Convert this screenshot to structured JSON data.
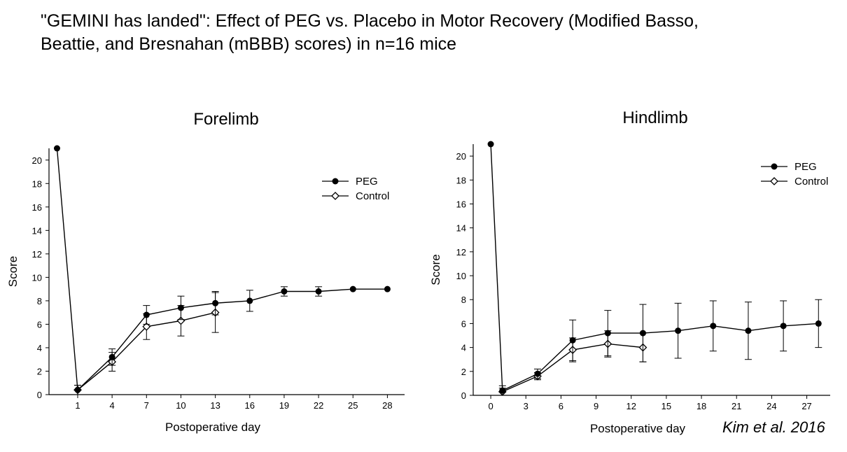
{
  "header": {
    "line1": "\"GEMINI has landed\": Effect of PEG vs. Placebo in Motor Recovery (Modified Basso,",
    "line2": "Beattie, and Bresnahan (mBBB) scores) in n=16 mice"
  },
  "citation": "Kim et al. 2016",
  "chart_data": [
    {
      "type": "line",
      "title": "Forelimb",
      "xlabel": "Postoperative day",
      "ylabel": "Score",
      "xlim": [
        -1.5,
        29.5
      ],
      "ylim": [
        0,
        21
      ],
      "xticks": [
        1,
        4,
        7,
        10,
        13,
        16,
        19,
        22,
        25,
        28
      ],
      "yticks": [
        0,
        2,
        4,
        6,
        8,
        10,
        12,
        14,
        16,
        18,
        20
      ],
      "legend": "top-right",
      "series": [
        {
          "name": "PEG",
          "marker": "filled-circle",
          "x": [
            -0.8,
            1,
            4,
            7,
            10,
            13,
            16,
            19,
            22,
            25,
            28
          ],
          "y": [
            21,
            0.4,
            3.2,
            6.8,
            7.4,
            7.8,
            8.0,
            8.8,
            8.8,
            9.0,
            9.0
          ],
          "err": [
            0,
            0.4,
            0.7,
            0.8,
            1.0,
            1.0,
            0.9,
            0.4,
            0.4,
            0,
            0
          ]
        },
        {
          "name": "Control",
          "marker": "open-diamond",
          "x": [
            1,
            4,
            7,
            10,
            13
          ],
          "y": [
            0.4,
            2.8,
            5.8,
            6.3,
            7.0
          ],
          "err": [
            0.4,
            0.8,
            1.1,
            1.3,
            1.7
          ]
        }
      ]
    },
    {
      "type": "line",
      "title": "Hindlimb",
      "xlabel": "Postoperative day",
      "ylabel": "Score",
      "xlim": [
        -1.5,
        29
      ],
      "ylim": [
        0,
        21
      ],
      "xticks": [
        0,
        3,
        6,
        9,
        12,
        15,
        18,
        21,
        24,
        27
      ],
      "yticks": [
        0,
        2,
        4,
        6,
        8,
        10,
        12,
        14,
        16,
        18,
        20
      ],
      "legend": "top-right",
      "series": [
        {
          "name": "PEG",
          "marker": "filled-circle",
          "x": [
            0,
            1,
            4,
            7,
            10,
            13,
            16,
            19,
            22,
            25,
            28
          ],
          "y": [
            21,
            0.4,
            1.8,
            4.6,
            5.2,
            5.2,
            5.4,
            5.8,
            5.4,
            5.8,
            6.0
          ],
          "err": [
            0,
            0.4,
            0.4,
            1.7,
            1.9,
            2.4,
            2.3,
            2.1,
            2.4,
            2.1,
            2.0
          ]
        },
        {
          "name": "Control",
          "marker": "open-diamond",
          "x": [
            1,
            4,
            7,
            10,
            13
          ],
          "y": [
            0.3,
            1.6,
            3.8,
            4.3,
            4.0
          ],
          "err": [
            0.3,
            0.3,
            1.0,
            1.1,
            1.2
          ]
        }
      ]
    }
  ]
}
